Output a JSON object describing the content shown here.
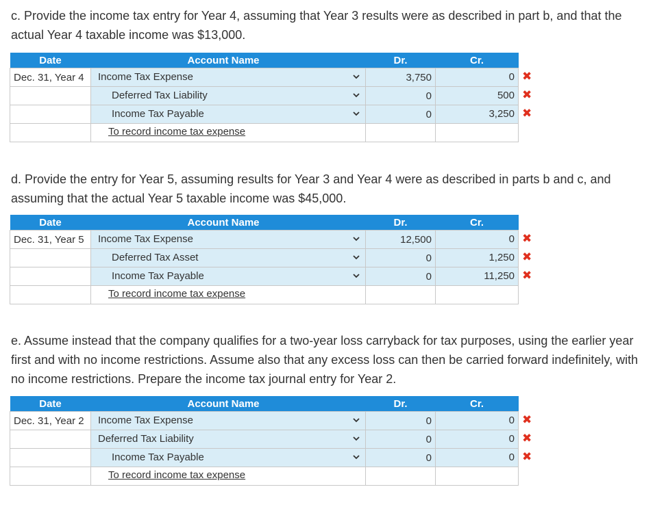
{
  "headers": {
    "date": "Date",
    "account": "Account Name",
    "dr": "Dr.",
    "cr": "Cr."
  },
  "sections": [
    {
      "question": "c. Provide the income tax entry for Year 4, assuming that Year 3 results were as described in part b, and that the actual Year 4 taxable income was $13,000.",
      "date": "Dec. 31, Year 4",
      "rows": [
        {
          "account": "Income Tax Expense",
          "dr": "3,750",
          "cr": "0",
          "mark": "✖"
        },
        {
          "account": "Deferred Tax Liability",
          "dr": "0",
          "cr": "500",
          "mark": "✖"
        },
        {
          "account": "Income Tax Payable",
          "dr": "0",
          "cr": "3,250",
          "mark": "✖"
        }
      ],
      "memo": "To record income tax expense"
    },
    {
      "question": "d. Provide the entry for Year 5, assuming results for Year 3 and Year 4 were as described in parts b and c, and assuming that the actual Year 5 taxable income was $45,000.",
      "date": "Dec. 31, Year 5",
      "rows": [
        {
          "account": "Income Tax Expense",
          "dr": "12,500",
          "cr": "0",
          "mark": "✖"
        },
        {
          "account": "Deferred Tax Asset",
          "dr": "0",
          "cr": "1,250",
          "mark": "✖"
        },
        {
          "account": "Income Tax Payable",
          "dr": "0",
          "cr": "11,250",
          "mark": "✖"
        }
      ],
      "memo": "To record income tax expense"
    },
    {
      "question": "e. Assume instead that the company qualifies for a two-year loss carryback for tax purposes, using the earlier year first and with no income restrictions. Assume also that any excess loss can then be carried forward indefinitely, with no income restrictions. Prepare the income tax journal entry for Year 2.",
      "date": "Dec. 31, Year 2",
      "rows": [
        {
          "account": "Income Tax Expense",
          "dr": "0",
          "cr": "0",
          "mark": "✖"
        },
        {
          "account": "Deferred Tax Liability",
          "dr": "0",
          "cr": "0",
          "mark": "✖"
        },
        {
          "account": "Income Tax Payable",
          "dr": "0",
          "cr": "0",
          "mark": "✖"
        }
      ],
      "memo": "To record income tax expense"
    }
  ],
  "colors": {
    "header_bg": "#1f8cd9",
    "cell_bg": "#d9edf7",
    "error_mark": "#e0301e"
  },
  "icons": {
    "row_dropdown": "chevron-down-icon",
    "incorrect": "incorrect-x-icon"
  }
}
